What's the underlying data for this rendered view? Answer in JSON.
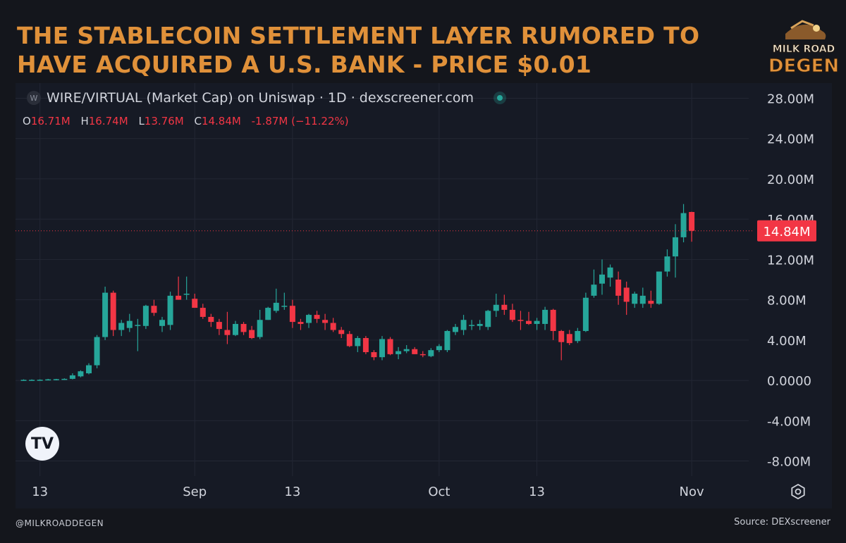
{
  "headline": "THE STABLECOIN SETTLEMENT LAYER RUMORED TO HAVE ACQUIRED A U.S. BANK - PRICE $0.01",
  "logo": {
    "line1": "MILK ROAD",
    "line2": "DEGEN"
  },
  "legend": {
    "coin_glyph": "W",
    "title": "WIRE/VIRTUAL (Market Cap) on Uniswap · 1D · dexscreener.com"
  },
  "ohlc": {
    "o_label": "O",
    "o_value": "16.71M",
    "h_label": "H",
    "h_value": "16.74M",
    "l_label": "L",
    "l_value": "13.76M",
    "c_label": "C",
    "c_value": "14.84M",
    "change": "-1.87M (−11.22%)"
  },
  "tv_logo": "TV",
  "footer": {
    "handle": "@MILKROADDEGEN",
    "source": "Source: DEXscreener"
  },
  "colors": {
    "up": "#26a69a",
    "down": "#f23645",
    "background": "#14161c",
    "panel": "#161a25",
    "grid": "#232734",
    "headline": "#e0913a"
  },
  "chart_data": {
    "type": "candlestick",
    "title": "",
    "y_unit": "market cap (USD)",
    "ylim": [
      -9.5,
      29.5
    ],
    "y_ticks": [
      "28.00M",
      "24.00M",
      "20.00M",
      "16.00M",
      "12.00M",
      "8.00M",
      "4.00M",
      "0.0000",
      "-4.00M",
      "-8.00M"
    ],
    "y_tick_values": [
      28,
      24,
      20,
      16,
      12,
      8,
      4,
      0,
      -4,
      -8
    ],
    "x_ticks": [
      {
        "label": "13",
        "day": 13
      },
      {
        "label": "Sep",
        "day": 32
      },
      {
        "label": "13",
        "day": 44
      },
      {
        "label": "Oct",
        "day": 62
      },
      {
        "label": "13",
        "day": 74
      },
      {
        "label": "Nov",
        "day": 93
      }
    ],
    "x_range": [
      10,
      100
    ],
    "last_price": 14.84,
    "last_price_label": "14.84M",
    "grid": true,
    "candles": [
      {
        "day": 11,
        "o": 0.05,
        "h": 0.1,
        "l": 0.0,
        "c": 0.05
      },
      {
        "day": 12,
        "o": 0.05,
        "h": 0.1,
        "l": 0.0,
        "c": 0.05
      },
      {
        "day": 13,
        "o": 0.05,
        "h": 0.1,
        "l": 0.0,
        "c": 0.06
      },
      {
        "day": 14,
        "o": 0.06,
        "h": 0.15,
        "l": 0.0,
        "c": 0.1
      },
      {
        "day": 15,
        "o": 0.1,
        "h": 0.15,
        "l": 0.0,
        "c": 0.12
      },
      {
        "day": 16,
        "o": 0.1,
        "h": 0.2,
        "l": 0.05,
        "c": 0.15
      },
      {
        "day": 17,
        "o": 0.15,
        "h": 0.7,
        "l": 0.1,
        "c": 0.5
      },
      {
        "day": 18,
        "o": 0.4,
        "h": 1.0,
        "l": 0.3,
        "c": 0.9
      },
      {
        "day": 19,
        "o": 0.7,
        "h": 1.7,
        "l": 0.6,
        "c": 1.5
      },
      {
        "day": 20,
        "o": 1.5,
        "h": 4.5,
        "l": 1.2,
        "c": 4.3
      },
      {
        "day": 21,
        "o": 4.3,
        "h": 9.3,
        "l": 4.0,
        "c": 8.7
      },
      {
        "day": 22,
        "o": 8.7,
        "h": 8.9,
        "l": 4.4,
        "c": 5.0
      },
      {
        "day": 23,
        "o": 5.0,
        "h": 6.0,
        "l": 4.4,
        "c": 5.7
      },
      {
        "day": 24,
        "o": 5.2,
        "h": 6.6,
        "l": 4.8,
        "c": 5.9
      },
      {
        "day": 25,
        "o": 5.4,
        "h": 6.1,
        "l": 2.9,
        "c": 5.5
      },
      {
        "day": 26,
        "o": 5.4,
        "h": 7.5,
        "l": 5.1,
        "c": 7.4
      },
      {
        "day": 27,
        "o": 7.4,
        "h": 8.0,
        "l": 6.4,
        "c": 6.7
      },
      {
        "day": 28,
        "o": 5.4,
        "h": 6.3,
        "l": 4.8,
        "c": 6.0
      },
      {
        "day": 29,
        "o": 5.5,
        "h": 8.8,
        "l": 5.0,
        "c": 8.4
      },
      {
        "day": 30,
        "o": 8.4,
        "h": 10.3,
        "l": 8.0,
        "c": 8.0
      },
      {
        "day": 31,
        "o": 8.5,
        "h": 10.3,
        "l": 8.0,
        "c": 8.6
      },
      {
        "day": 32,
        "o": 8.1,
        "h": 8.6,
        "l": 7.2,
        "c": 7.2
      },
      {
        "day": 33,
        "o": 7.2,
        "h": 7.6,
        "l": 6.1,
        "c": 6.3
      },
      {
        "day": 34,
        "o": 6.3,
        "h": 6.6,
        "l": 5.3,
        "c": 5.8
      },
      {
        "day": 35,
        "o": 5.8,
        "h": 6.1,
        "l": 4.5,
        "c": 5.1
      },
      {
        "day": 36,
        "o": 5.0,
        "h": 6.8,
        "l": 3.6,
        "c": 4.5
      },
      {
        "day": 37,
        "o": 4.5,
        "h": 5.9,
        "l": 4.4,
        "c": 5.6
      },
      {
        "day": 38,
        "o": 5.6,
        "h": 5.8,
        "l": 4.5,
        "c": 4.8
      },
      {
        "day": 39,
        "o": 5.0,
        "h": 5.4,
        "l": 4.1,
        "c": 4.2
      },
      {
        "day": 40,
        "o": 4.3,
        "h": 7.0,
        "l": 4.1,
        "c": 6.0
      },
      {
        "day": 41,
        "o": 6.0,
        "h": 7.3,
        "l": 6.0,
        "c": 7.2
      },
      {
        "day": 42,
        "o": 6.9,
        "h": 9.1,
        "l": 6.7,
        "c": 7.7
      },
      {
        "day": 43,
        "o": 7.3,
        "h": 8.7,
        "l": 7.0,
        "c": 7.4
      },
      {
        "day": 44,
        "o": 7.4,
        "h": 8.0,
        "l": 5.2,
        "c": 5.8
      },
      {
        "day": 45,
        "o": 5.8,
        "h": 6.1,
        "l": 5.0,
        "c": 5.6
      },
      {
        "day": 46,
        "o": 5.7,
        "h": 6.6,
        "l": 5.2,
        "c": 6.5
      },
      {
        "day": 47,
        "o": 6.5,
        "h": 6.9,
        "l": 5.7,
        "c": 6.1
      },
      {
        "day": 48,
        "o": 6.0,
        "h": 6.6,
        "l": 5.0,
        "c": 5.7
      },
      {
        "day": 49,
        "o": 5.7,
        "h": 6.2,
        "l": 4.8,
        "c": 5.0
      },
      {
        "day": 50,
        "o": 5.0,
        "h": 5.3,
        "l": 4.2,
        "c": 4.6
      },
      {
        "day": 51,
        "o": 4.6,
        "h": 4.9,
        "l": 3.3,
        "c": 3.4
      },
      {
        "day": 52,
        "o": 3.4,
        "h": 4.4,
        "l": 2.8,
        "c": 4.2
      },
      {
        "day": 53,
        "o": 4.2,
        "h": 4.4,
        "l": 2.6,
        "c": 2.8
      },
      {
        "day": 54,
        "o": 2.8,
        "h": 3.0,
        "l": 2.0,
        "c": 2.3
      },
      {
        "day": 55,
        "o": 2.3,
        "h": 4.4,
        "l": 2.0,
        "c": 4.1
      },
      {
        "day": 56,
        "o": 4.1,
        "h": 4.3,
        "l": 2.5,
        "c": 2.6
      },
      {
        "day": 57,
        "o": 2.6,
        "h": 3.3,
        "l": 2.1,
        "c": 2.9
      },
      {
        "day": 58,
        "o": 2.9,
        "h": 3.5,
        "l": 2.7,
        "c": 3.1
      },
      {
        "day": 59,
        "o": 3.1,
        "h": 3.3,
        "l": 2.6,
        "c": 2.6
      },
      {
        "day": 60,
        "o": 2.6,
        "h": 2.9,
        "l": 2.3,
        "c": 2.5
      },
      {
        "day": 61,
        "o": 2.4,
        "h": 3.2,
        "l": 2.3,
        "c": 3.0
      },
      {
        "day": 62,
        "o": 3.0,
        "h": 3.6,
        "l": 2.8,
        "c": 3.4
      },
      {
        "day": 63,
        "o": 3.0,
        "h": 5.0,
        "l": 2.8,
        "c": 4.9
      },
      {
        "day": 64,
        "o": 4.8,
        "h": 5.6,
        "l": 4.5,
        "c": 5.3
      },
      {
        "day": 65,
        "o": 5.0,
        "h": 6.5,
        "l": 4.5,
        "c": 6.0
      },
      {
        "day": 66,
        "o": 5.4,
        "h": 6.0,
        "l": 5.0,
        "c": 5.5
      },
      {
        "day": 67,
        "o": 5.4,
        "h": 6.0,
        "l": 5.0,
        "c": 5.6
      },
      {
        "day": 68,
        "o": 5.3,
        "h": 7.0,
        "l": 5.0,
        "c": 6.9
      },
      {
        "day": 69,
        "o": 6.9,
        "h": 8.6,
        "l": 6.3,
        "c": 7.5
      },
      {
        "day": 70,
        "o": 7.5,
        "h": 8.5,
        "l": 6.5,
        "c": 7.0
      },
      {
        "day": 71,
        "o": 7.0,
        "h": 7.6,
        "l": 5.8,
        "c": 6.0
      },
      {
        "day": 72,
        "o": 6.0,
        "h": 6.9,
        "l": 5.0,
        "c": 5.9
      },
      {
        "day": 73,
        "o": 5.9,
        "h": 6.8,
        "l": 5.5,
        "c": 5.6
      },
      {
        "day": 74,
        "o": 5.6,
        "h": 6.2,
        "l": 5.0,
        "c": 5.9
      },
      {
        "day": 75,
        "o": 5.6,
        "h": 7.3,
        "l": 5.0,
        "c": 7.0
      },
      {
        "day": 76,
        "o": 7.0,
        "h": 7.1,
        "l": 4.0,
        "c": 4.9
      },
      {
        "day": 77,
        "o": 4.9,
        "h": 5.0,
        "l": 2.0,
        "c": 3.8
      },
      {
        "day": 78,
        "o": 4.6,
        "h": 5.0,
        "l": 3.5,
        "c": 3.7
      },
      {
        "day": 79,
        "o": 3.9,
        "h": 5.2,
        "l": 3.7,
        "c": 4.9
      },
      {
        "day": 80,
        "o": 4.9,
        "h": 8.7,
        "l": 4.8,
        "c": 8.2
      },
      {
        "day": 81,
        "o": 8.4,
        "h": 11.0,
        "l": 8.2,
        "c": 9.5
      },
      {
        "day": 82,
        "o": 9.6,
        "h": 12.0,
        "l": 8.5,
        "c": 10.5
      },
      {
        "day": 83,
        "o": 10.2,
        "h": 11.5,
        "l": 9.3,
        "c": 11.2
      },
      {
        "day": 84,
        "o": 10.0,
        "h": 10.8,
        "l": 7.5,
        "c": 8.4
      },
      {
        "day": 85,
        "o": 9.2,
        "h": 9.8,
        "l": 6.5,
        "c": 7.8
      },
      {
        "day": 86,
        "o": 7.6,
        "h": 8.8,
        "l": 7.2,
        "c": 8.6
      },
      {
        "day": 87,
        "o": 7.6,
        "h": 9.2,
        "l": 7.2,
        "c": 8.4
      },
      {
        "day": 88,
        "o": 7.9,
        "h": 8.9,
        "l": 7.2,
        "c": 7.6
      },
      {
        "day": 89,
        "o": 7.6,
        "h": 10.8,
        "l": 7.5,
        "c": 10.8
      },
      {
        "day": 90,
        "o": 10.8,
        "h": 13.0,
        "l": 10.3,
        "c": 12.3
      },
      {
        "day": 91,
        "o": 12.3,
        "h": 15.5,
        "l": 10.2,
        "c": 14.2
      },
      {
        "day": 92,
        "o": 14.2,
        "h": 17.5,
        "l": 13.7,
        "c": 16.6
      },
      {
        "day": 93,
        "o": 16.71,
        "h": 16.74,
        "l": 13.76,
        "c": 14.84
      }
    ]
  }
}
